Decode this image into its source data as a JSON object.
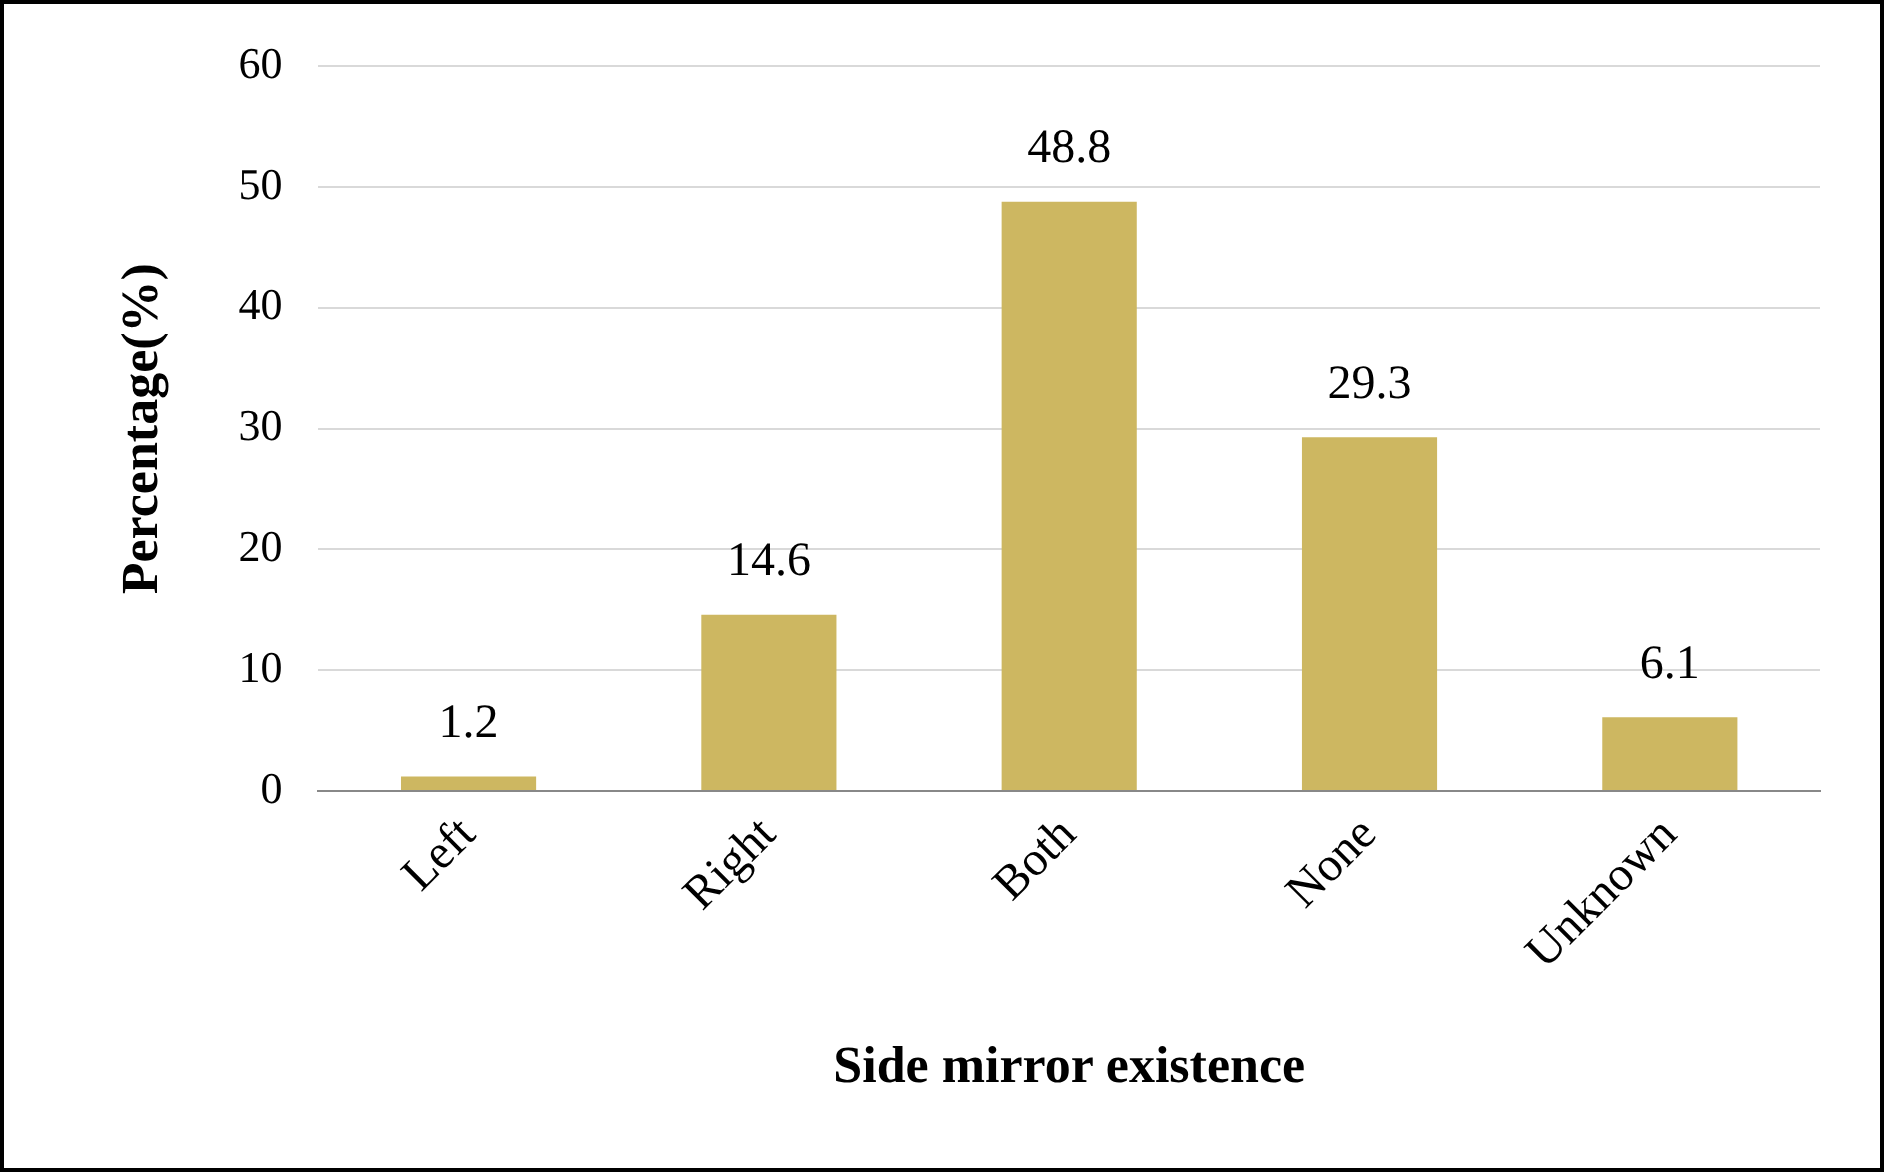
{
  "chart_data": {
    "type": "bar",
    "xlabel": "Side mirror existence",
    "ylabel": "Percentage(%)",
    "categories": [
      "Left",
      "Right",
      "Both",
      "None",
      "Unknown"
    ],
    "values": [
      1.2,
      14.6,
      48.8,
      29.3,
      6.1
    ],
    "color": "#cdb761",
    "ylim": [
      0,
      60
    ],
    "yticks": [
      0,
      10,
      20,
      30,
      40,
      50,
      60
    ],
    "grid": "y",
    "data_labels": true,
    "legend": false
  }
}
